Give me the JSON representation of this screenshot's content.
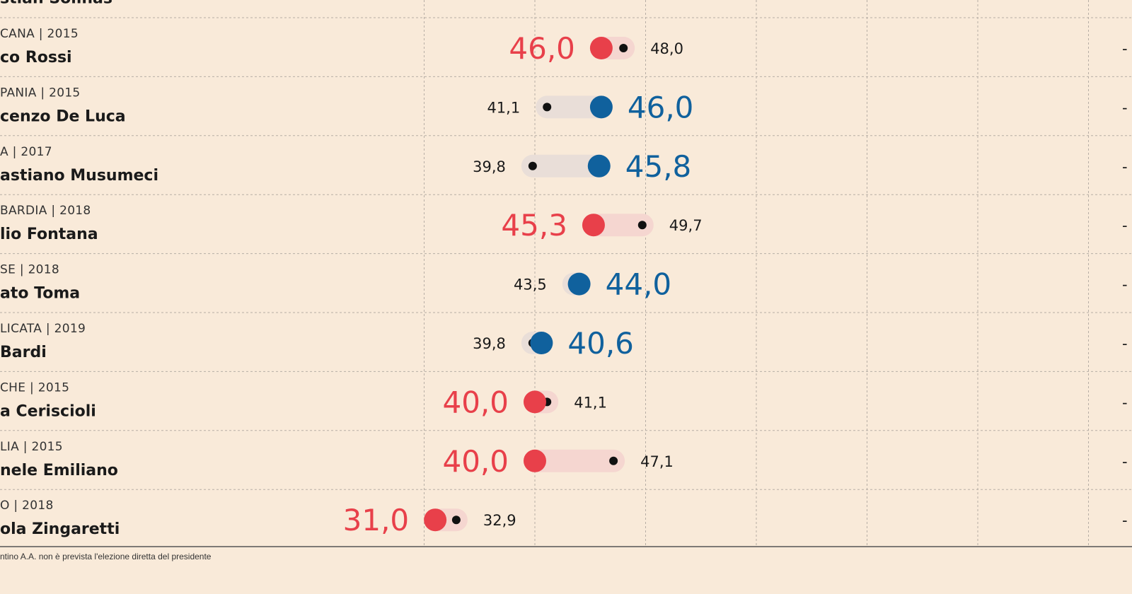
{
  "chart_data": {
    "type": "dumbbell",
    "xlim": [
      25,
      60
    ],
    "colors": {
      "left": "#e8404a",
      "right": "#10619d",
      "bar_left": "#f5d6d0",
      "bar_right": "#e9ded8",
      "dot_small": "#111111",
      "grid": "#b7aea5",
      "axis": "#555555"
    },
    "rows": [
      {
        "region": "",
        "candidate": "stian Solinas",
        "main": null,
        "other": null,
        "main_label": "",
        "other_label": "",
        "party": "",
        "edge_mark": ""
      },
      {
        "region": "CANA | 2015",
        "candidate": "co Rossi",
        "main": 46.0,
        "other": 48.0,
        "main_label": "46,0",
        "other_label": "48,0",
        "party": "left",
        "edge_mark": "-"
      },
      {
        "region": "PANIA | 2015",
        "candidate": "cenzo De Luca",
        "main": 46.0,
        "other": 41.1,
        "main_label": "46,0",
        "other_label": "41,1",
        "party": "right",
        "edge_mark": "-"
      },
      {
        "region": "A | 2017",
        "candidate": "astiano Musumeci",
        "main": 45.8,
        "other": 39.8,
        "main_label": "45,8",
        "other_label": "39,8",
        "party": "right",
        "edge_mark": "-"
      },
      {
        "region": "BARDIA | 2018",
        "candidate": "lio Fontana",
        "main": 45.3,
        "other": 49.7,
        "main_label": "45,3",
        "other_label": "49,7",
        "party": "left",
        "edge_mark": "-"
      },
      {
        "region": "SE | 2018",
        "candidate": "ato Toma",
        "main": 44.0,
        "other": 43.5,
        "main_label": "44,0",
        "other_label": "43,5",
        "party": "right",
        "edge_mark": "-"
      },
      {
        "region": "LICATA | 2019",
        "candidate": "Bardi",
        "main": 40.6,
        "other": 39.8,
        "main_label": "40,6",
        "other_label": "39,8",
        "party": "right",
        "edge_mark": "-"
      },
      {
        "region": "CHE | 2015",
        "candidate": "a Ceriscioli",
        "main": 40.0,
        "other": 41.1,
        "main_label": "40,0",
        "other_label": "41,1",
        "party": "left",
        "edge_mark": "-"
      },
      {
        "region": "LIA | 2015",
        "candidate": "nele Emiliano",
        "main": 40.0,
        "other": 47.1,
        "main_label": "40,0",
        "other_label": "47,1",
        "party": "left",
        "edge_mark": "-"
      },
      {
        "region": "O | 2018",
        "candidate": "ola Zingaretti",
        "main": 31.0,
        "other": 32.9,
        "main_label": "31,0",
        "other_label": "32,9",
        "party": "left",
        "edge_mark": "-"
      }
    ],
    "footnote": "ntino A.A. non è prevista l'elezione diretta del presidente",
    "grid": true
  }
}
